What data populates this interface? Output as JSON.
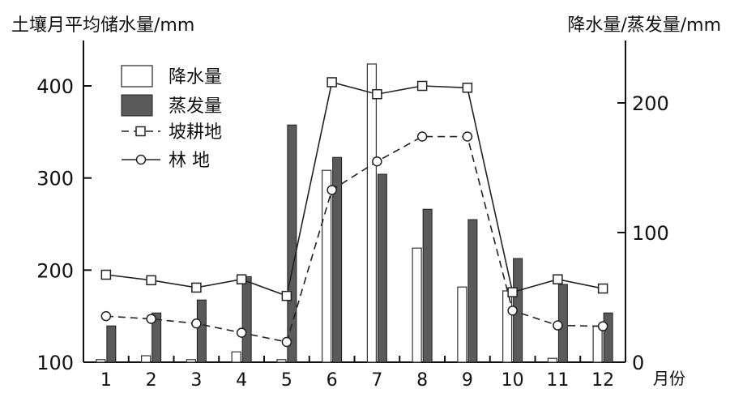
{
  "chart_data": {
    "type": "bar",
    "categories": [
      "1",
      "2",
      "3",
      "4",
      "5",
      "6",
      "7",
      "8",
      "9",
      "10",
      "11",
      "12"
    ],
    "xlabel": "月份",
    "left_axis": {
      "label": "土壤月平均储水量/mm",
      "ylim": [
        100,
        400
      ],
      "ticks": [
        "100",
        "200",
        "300",
        "400"
      ]
    },
    "right_axis": {
      "label": "降水量/蒸发量/mm",
      "ylim": [
        0,
        200
      ],
      "ticks": [
        "0",
        "100",
        "200"
      ]
    },
    "series": [
      {
        "name": "降水量",
        "kind": "bar",
        "axis": "right",
        "color": "#ffffff",
        "values": [
          2,
          5,
          2,
          8,
          2,
          148,
          230,
          88,
          58,
          55,
          3,
          28
        ]
      },
      {
        "name": "蒸发量",
        "kind": "bar",
        "axis": "right",
        "color": "#5a5a5a",
        "values": [
          28,
          38,
          48,
          66,
          183,
          158,
          145,
          118,
          110,
          80,
          60,
          38
        ]
      },
      {
        "name": "坡耕地",
        "kind": "line",
        "axis": "left",
        "style": "solid",
        "marker": "square",
        "values": [
          195,
          189,
          181,
          190,
          172,
          404,
          391,
          400,
          398,
          176,
          190,
          180
        ]
      },
      {
        "name": "林 地",
        "kind": "line",
        "axis": "left",
        "style": "dashed",
        "marker": "circle",
        "values": [
          150,
          147,
          142,
          132,
          122,
          287,
          318,
          345,
          345,
          156,
          140,
          139
        ]
      }
    ]
  }
}
